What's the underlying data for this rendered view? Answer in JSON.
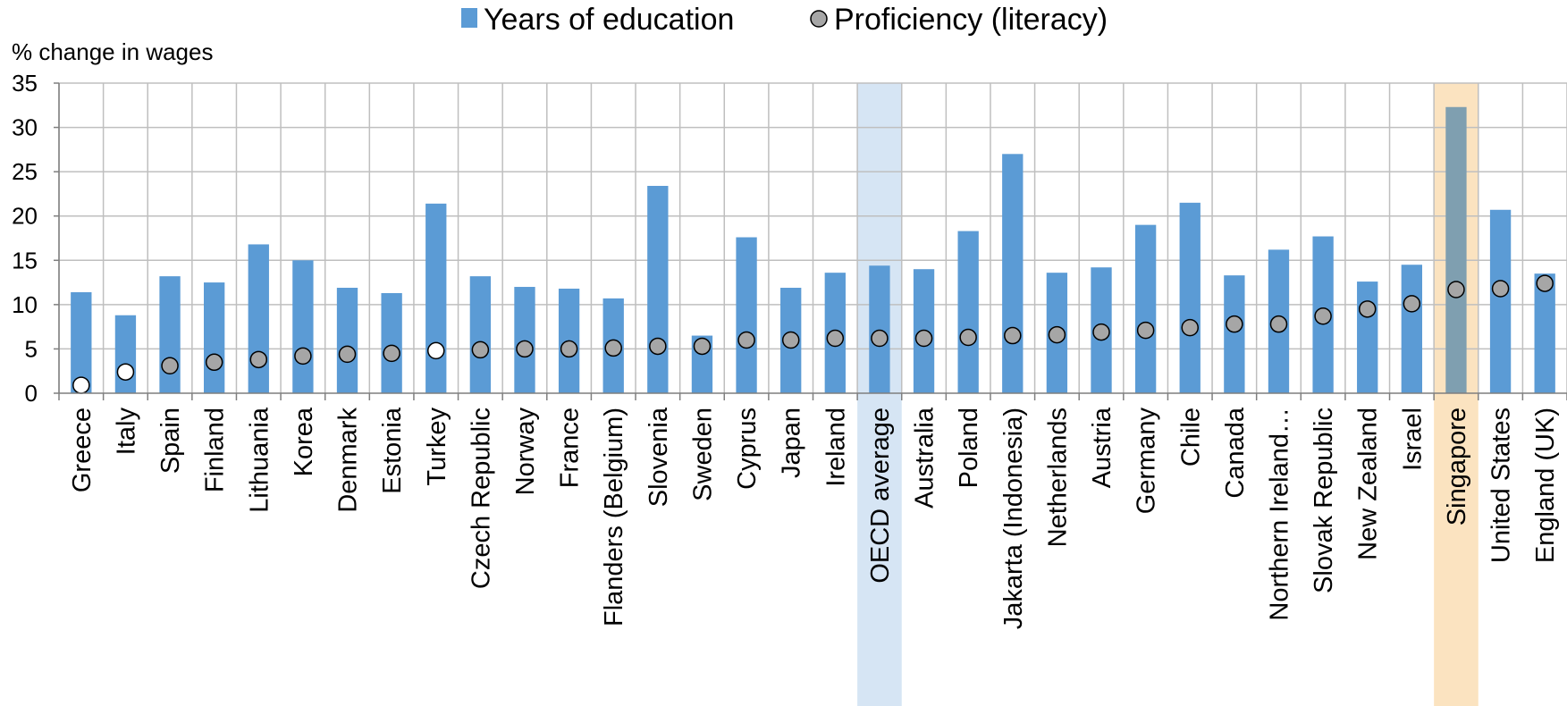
{
  "chart_data": {
    "type": "bar",
    "ylabel": "% change in wages",
    "ylim": [
      0,
      35
    ],
    "yticks": [
      0,
      5,
      10,
      15,
      20,
      25,
      30,
      35
    ],
    "grid": true,
    "legend_placement": "top-center",
    "categories": [
      "Greece",
      "Italy",
      "Spain",
      "Finland",
      "Lithuania",
      "Korea",
      "Denmark",
      "Estonia",
      "Turkey",
      "Czech Republic",
      "Norway",
      "France",
      "Flanders (Belgium)",
      "Slovenia",
      "Sweden",
      "Cyprus",
      "Japan",
      "Ireland",
      "OECD average",
      "Australia",
      "Poland",
      "Jakarta (Indonesia)",
      "Netherlands",
      "Austria",
      "Germany",
      "Chile",
      "Canada",
      "Northern Ireland…",
      "Slovak Republic",
      "New Zealand",
      "Israel",
      "Singapore",
      "United States",
      "England (UK)"
    ],
    "highlights": [
      {
        "category": "OECD average",
        "color": "#d6e5f4"
      },
      {
        "category": "Singapore",
        "color": "#fbe3c0"
      }
    ],
    "series": [
      {
        "name": "Years of education",
        "kind": "bar",
        "color": "#5b9bd5",
        "values": [
          11.4,
          8.8,
          13.2,
          12.5,
          16.8,
          15.0,
          11.9,
          11.3,
          21.4,
          13.2,
          12.0,
          11.8,
          10.7,
          23.4,
          6.5,
          17.6,
          11.9,
          13.6,
          14.4,
          14.0,
          18.3,
          27.0,
          13.6,
          14.2,
          19.0,
          21.5,
          13.3,
          16.2,
          17.7,
          12.6,
          14.5,
          32.3,
          20.7,
          13.5
        ]
      },
      {
        "name": "Proficiency (literacy)",
        "kind": "marker",
        "color": "#a6a6a6",
        "values": [
          0.9,
          2.4,
          3.1,
          3.5,
          3.8,
          4.2,
          4.4,
          4.5,
          4.8,
          4.9,
          5.0,
          5.0,
          5.1,
          5.3,
          5.3,
          6.0,
          6.0,
          6.2,
          6.2,
          6.2,
          6.3,
          6.5,
          6.6,
          6.9,
          7.1,
          7.4,
          7.8,
          7.8,
          8.7,
          9.5,
          10.1,
          11.7,
          11.8,
          12.4
        ],
        "not_significant": [
          "Greece",
          "Italy",
          "Turkey"
        ],
        "not_significant_color": "#ffffff"
      }
    ]
  }
}
